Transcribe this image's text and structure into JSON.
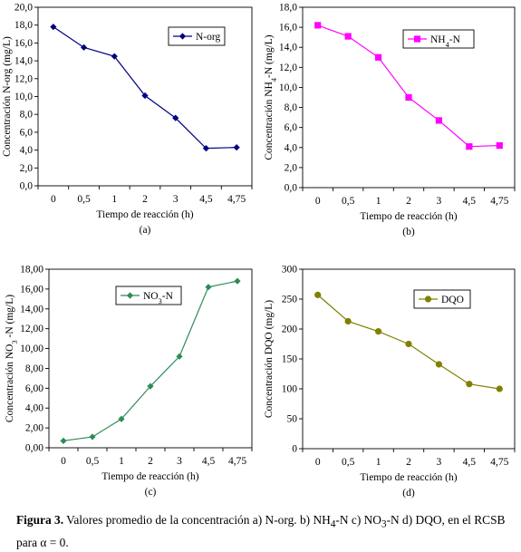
{
  "chart_data": [
    {
      "type": "line",
      "panel_label": "(a)",
      "categories": [
        "0",
        "0,5",
        "1",
        "2",
        "3",
        "4,5",
        "4,75"
      ],
      "xlabel": "Tiempo de reacción (h)",
      "ylabel": "Concentración N-org (mg/L)",
      "ylim": [
        0,
        20
      ],
      "ytick_step": 2,
      "yticks": [
        "0,0",
        "2,0",
        "4,0",
        "6,0",
        "8,0",
        "10,0",
        "12,0",
        "14,0",
        "16,0",
        "18,0",
        "20,0"
      ],
      "legend_position": "top-right",
      "grid": false,
      "series": [
        {
          "name": "N-org",
          "color": "#000080",
          "marker": "diamond",
          "values": [
            17.8,
            15.5,
            14.5,
            10.1,
            7.6,
            4.2,
            4.3
          ]
        }
      ]
    },
    {
      "type": "line",
      "panel_label": "(b)",
      "categories": [
        "0",
        "0,5",
        "1",
        "2",
        "3",
        "4,5",
        "4,75"
      ],
      "xlabel": "Tiempo de reacción (h)",
      "ylabel_parts": [
        "Concentración NH",
        "4",
        "-N (mg/L)"
      ],
      "ylim": [
        0,
        18
      ],
      "ytick_step": 2,
      "yticks": [
        "0,0",
        "2,0",
        "4,0",
        "6,0",
        "8,0",
        "10,0",
        "12,0",
        "14,0",
        "16,0",
        "18,0"
      ],
      "legend_position": "top-right",
      "grid": false,
      "series": [
        {
          "name_parts": [
            "NH",
            "4",
            "-N"
          ],
          "color": "#ff00ff",
          "marker": "square",
          "values": [
            16.2,
            15.1,
            13.0,
            9.0,
            6.7,
            4.1,
            4.2
          ]
        }
      ]
    },
    {
      "type": "line",
      "panel_label": "(c)",
      "categories": [
        "0",
        "0,5",
        "1",
        "2",
        "3",
        "4,5",
        "4,75"
      ],
      "xlabel": "Tiempo de reacción (h)",
      "ylabel_parts": [
        "Concentración NO",
        "3",
        " -N (mg/L)"
      ],
      "ylim": [
        0,
        18
      ],
      "ytick_step": 2,
      "yticks": [
        "0,00",
        "2,00",
        "4,00",
        "6,00",
        "8,00",
        "10,00",
        "12,00",
        "14,00",
        "16,00",
        "18,00"
      ],
      "legend_position": "top-right",
      "grid": false,
      "series": [
        {
          "name_parts": [
            "NO",
            "3",
            "-N"
          ],
          "color": "#2e8b57",
          "marker": "diamond",
          "values": [
            0.7,
            1.1,
            2.9,
            6.2,
            9.2,
            16.2,
            16.8
          ]
        }
      ]
    },
    {
      "type": "line",
      "panel_label": "(d)",
      "categories": [
        "0",
        "0,5",
        "1",
        "2",
        "3",
        "4,5",
        "4,75"
      ],
      "xlabel": "Tiempo de reacción (h)",
      "ylabel": "Concentración DQO (mg/L)",
      "ylim": [
        0,
        300
      ],
      "ytick_step": 50,
      "yticks": [
        "0",
        "50",
        "100",
        "150",
        "200",
        "250",
        "300"
      ],
      "legend_position": "top-right",
      "grid": false,
      "series": [
        {
          "name": "DQO",
          "color": "#808000",
          "marker": "circle",
          "values": [
            257,
            213,
            196,
            175,
            141,
            108,
            100
          ]
        }
      ]
    }
  ],
  "caption": {
    "label": "Figura 3.",
    "text_parts": [
      " Valores promedio de la concentración a) N-org. b) NH",
      "4",
      "-N c) NO",
      "3",
      "-N d) DQO, en el RCSB para α = 0."
    ]
  }
}
